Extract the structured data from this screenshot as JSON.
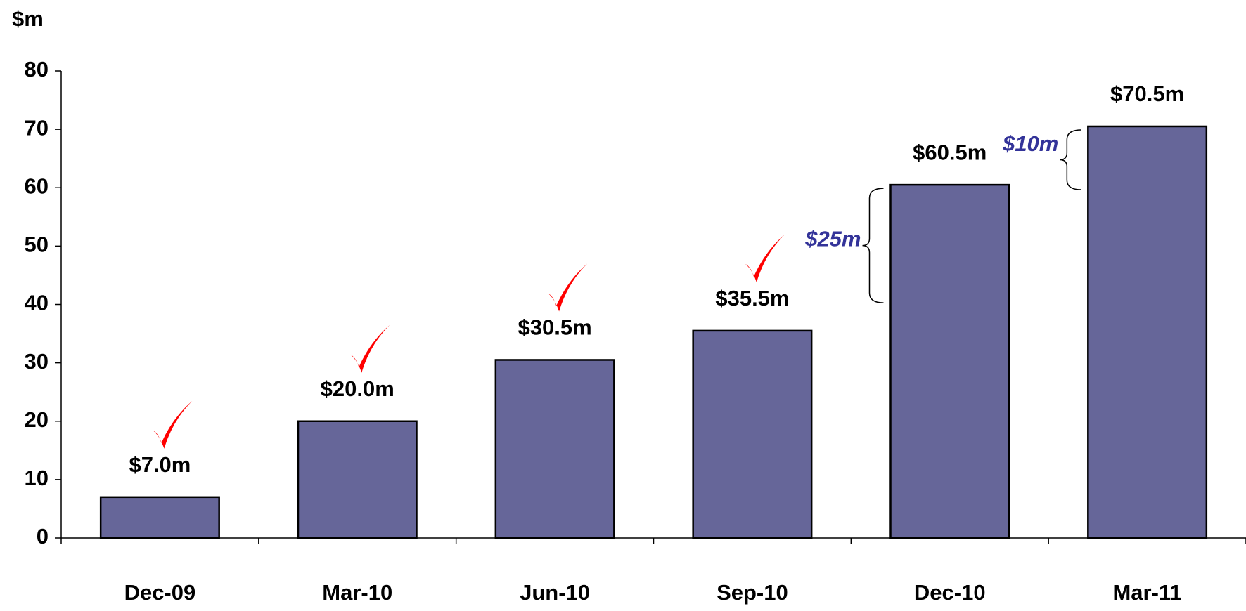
{
  "chart_data": {
    "type": "bar",
    "title": "$m",
    "categories": [
      "Dec-09",
      "Mar-10",
      "Jun-10",
      "Sep-10",
      "Dec-10",
      "Mar-11"
    ],
    "values": [
      7.0,
      20.0,
      30.5,
      35.5,
      60.5,
      70.5
    ],
    "value_labels": [
      "$7.0m",
      "$20.0m",
      "$30.5m",
      "$35.5m",
      "$60.5m",
      "$70.5m"
    ],
    "color": "#666699",
    "ylim": [
      0,
      80
    ],
    "yticks": [
      0,
      10,
      20,
      30,
      40,
      50,
      60,
      70,
      80
    ],
    "annotations": [
      "$25m",
      "$10m"
    ]
  }
}
